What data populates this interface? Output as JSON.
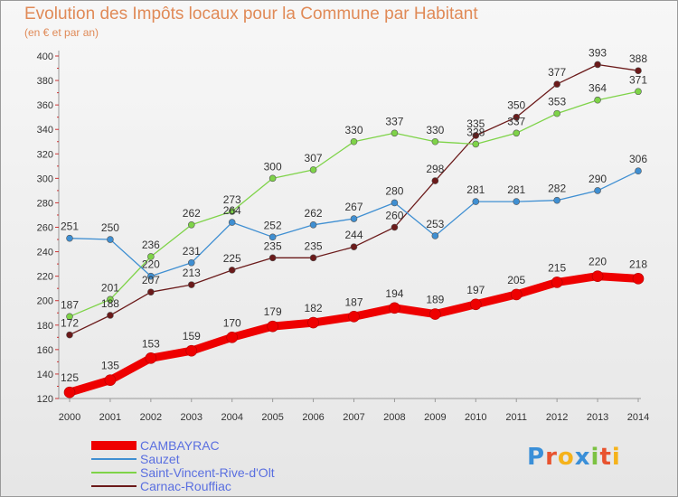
{
  "header": {
    "title": "Evolution des Impôts locaux pour la Commune par Habitant",
    "subtitle": "(en € et par an)"
  },
  "logo": {
    "letters": [
      "P",
      "r",
      "o",
      "x",
      "i",
      "t",
      "i"
    ],
    "colors": [
      "#3a8fd8",
      "#e8532f",
      "#f5b21b",
      "#3a8fd8",
      "#7cc242",
      "#e8532f",
      "#f5b21b"
    ]
  },
  "chart_data": {
    "type": "line",
    "title": "Evolution des Impôts locaux pour la Commune par Habitant",
    "subtitle": "(en € et par an)",
    "x": [
      2000,
      2001,
      2002,
      2003,
      2004,
      2005,
      2006,
      2007,
      2008,
      2009,
      2010,
      2011,
      2012,
      2013,
      2014
    ],
    "ylim": [
      120,
      400
    ],
    "yticks": [
      120,
      140,
      160,
      180,
      200,
      220,
      240,
      260,
      280,
      300,
      320,
      340,
      360,
      380,
      400
    ],
    "grid": false,
    "legend": "bottom-left",
    "series": [
      {
        "name": "CAMBAYRAC",
        "color": "#ee0000",
        "values": [
          125,
          135,
          153,
          159,
          170,
          179,
          182,
          187,
          194,
          189,
          197,
          205,
          215,
          220,
          218
        ]
      },
      {
        "name": "Sauzet",
        "color": "#3f8fd2",
        "values": [
          251,
          250,
          220,
          231,
          264,
          252,
          262,
          267,
          280,
          253,
          281,
          281,
          282,
          290,
          306
        ]
      },
      {
        "name": "Saint-Vincent-Rive-d'Olt",
        "color": "#7ed348",
        "values": [
          187,
          201,
          236,
          262,
          273,
          300,
          307,
          330,
          337,
          330,
          328,
          337,
          353,
          364,
          371
        ]
      },
      {
        "name": "Carnac-Rouffiac",
        "color": "#6b1a1a",
        "values": [
          172,
          188,
          207,
          213,
          225,
          235,
          235,
          244,
          260,
          298,
          335,
          350,
          377,
          393,
          388
        ]
      }
    ]
  }
}
